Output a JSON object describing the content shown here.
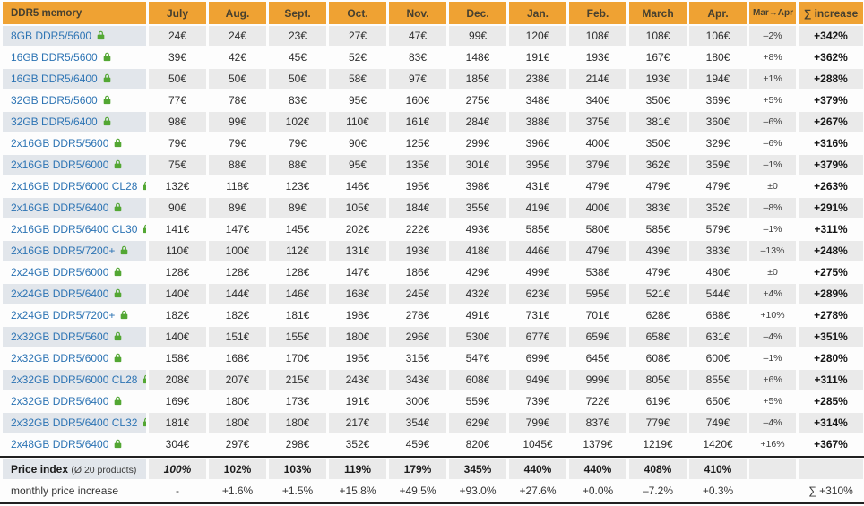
{
  "colors": {
    "header_bg": "#efa233",
    "header_text": "#47402f",
    "row_gray": "#eaeaea",
    "label_gray": "#e2e6eb",
    "link_blue": "#2d74b4",
    "lock_green": "#53a733",
    "separator_dark": "#212121"
  },
  "chart_data": {
    "type": "table",
    "title": "DDR5 memory",
    "header": {
      "label": "DDR5 memory",
      "months": [
        "July",
        "Aug.",
        "Sept.",
        "Oct.",
        "Nov.",
        "Dec.",
        "Jan.",
        "Feb.",
        "March",
        "Apr."
      ],
      "change_label": "Mar→Apr",
      "sum_label": "∑ increase"
    },
    "rows": [
      {
        "label": "8GB DDR5/5600",
        "prices": [
          "24€",
          "24€",
          "23€",
          "27€",
          "47€",
          "99€",
          "120€",
          "108€",
          "108€",
          "106€"
        ],
        "change": "–2%",
        "sum": "+342%"
      },
      {
        "label": "16GB DDR5/5600",
        "prices": [
          "39€",
          "42€",
          "45€",
          "52€",
          "83€",
          "148€",
          "191€",
          "193€",
          "167€",
          "180€"
        ],
        "change": "+8%",
        "sum": "+362%"
      },
      {
        "label": "16GB DDR5/6400",
        "prices": [
          "50€",
          "50€",
          "50€",
          "58€",
          "97€",
          "185€",
          "238€",
          "214€",
          "193€",
          "194€"
        ],
        "change": "+1%",
        "sum": "+288%"
      },
      {
        "label": "32GB DDR5/5600",
        "prices": [
          "77€",
          "78€",
          "83€",
          "95€",
          "160€",
          "275€",
          "348€",
          "340€",
          "350€",
          "369€"
        ],
        "change": "+5%",
        "sum": "+379%"
      },
      {
        "label": "32GB DDR5/6400",
        "prices": [
          "98€",
          "99€",
          "102€",
          "110€",
          "161€",
          "284€",
          "388€",
          "375€",
          "381€",
          "360€"
        ],
        "change": "–6%",
        "sum": "+267%"
      },
      {
        "label": "2x16GB DDR5/5600",
        "prices": [
          "79€",
          "79€",
          "79€",
          "90€",
          "125€",
          "299€",
          "396€",
          "400€",
          "350€",
          "329€"
        ],
        "change": "–6%",
        "sum": "+316%"
      },
      {
        "label": "2x16GB DDR5/6000",
        "prices": [
          "75€",
          "88€",
          "88€",
          "95€",
          "135€",
          "301€",
          "395€",
          "379€",
          "362€",
          "359€"
        ],
        "change": "–1%",
        "sum": "+379%"
      },
      {
        "label": "2x16GB DDR5/6000 CL28",
        "prices": [
          "132€",
          "118€",
          "123€",
          "146€",
          "195€",
          "398€",
          "431€",
          "479€",
          "479€",
          "479€"
        ],
        "change": "±0",
        "sum": "+263%"
      },
      {
        "label": "2x16GB DDR5/6400",
        "prices": [
          "90€",
          "89€",
          "89€",
          "105€",
          "184€",
          "355€",
          "419€",
          "400€",
          "383€",
          "352€"
        ],
        "change": "–8%",
        "sum": "+291%"
      },
      {
        "label": "2x16GB DDR5/6400 CL30",
        "prices": [
          "141€",
          "147€",
          "145€",
          "202€",
          "222€",
          "493€",
          "585€",
          "580€",
          "585€",
          "579€"
        ],
        "change": "–1%",
        "sum": "+311%"
      },
      {
        "label": "2x16GB DDR5/7200+",
        "prices": [
          "110€",
          "100€",
          "112€",
          "131€",
          "193€",
          "418€",
          "446€",
          "479€",
          "439€",
          "383€"
        ],
        "change": "–13%",
        "sum": "+248%"
      },
      {
        "label": "2x24GB DDR5/6000",
        "prices": [
          "128€",
          "128€",
          "128€",
          "147€",
          "186€",
          "429€",
          "499€",
          "538€",
          "479€",
          "480€"
        ],
        "change": "±0",
        "sum": "+275%"
      },
      {
        "label": "2x24GB DDR5/6400",
        "prices": [
          "140€",
          "144€",
          "146€",
          "168€",
          "245€",
          "432€",
          "623€",
          "595€",
          "521€",
          "544€"
        ],
        "change": "+4%",
        "sum": "+289%"
      },
      {
        "label": "2x24GB DDR5/7200+",
        "prices": [
          "182€",
          "182€",
          "181€",
          "198€",
          "278€",
          "491€",
          "731€",
          "701€",
          "628€",
          "688€"
        ],
        "change": "+10%",
        "sum": "+278%"
      },
      {
        "label": "2x32GB DDR5/5600",
        "prices": [
          "140€",
          "151€",
          "155€",
          "180€",
          "296€",
          "530€",
          "677€",
          "659€",
          "658€",
          "631€"
        ],
        "change": "–4%",
        "sum": "+351%"
      },
      {
        "label": "2x32GB DDR5/6000",
        "prices": [
          "158€",
          "168€",
          "170€",
          "195€",
          "315€",
          "547€",
          "699€",
          "645€",
          "608€",
          "600€"
        ],
        "change": "–1%",
        "sum": "+280%"
      },
      {
        "label": "2x32GB DDR5/6000 CL28",
        "prices": [
          "208€",
          "207€",
          "215€",
          "243€",
          "343€",
          "608€",
          "949€",
          "999€",
          "805€",
          "855€"
        ],
        "change": "+6%",
        "sum": "+311%"
      },
      {
        "label": "2x32GB DDR5/6400",
        "prices": [
          "169€",
          "180€",
          "173€",
          "191€",
          "300€",
          "559€",
          "739€",
          "722€",
          "619€",
          "650€"
        ],
        "change": "+5%",
        "sum": "+285%"
      },
      {
        "label": "2x32GB DDR5/6400 CL32",
        "prices": [
          "181€",
          "180€",
          "180€",
          "217€",
          "354€",
          "629€",
          "799€",
          "837€",
          "779€",
          "749€"
        ],
        "change": "–4%",
        "sum": "+314%"
      },
      {
        "label": "2x48GB DDR5/6400",
        "prices": [
          "304€",
          "297€",
          "298€",
          "352€",
          "459€",
          "820€",
          "1045€",
          "1379€",
          "1219€",
          "1420€"
        ],
        "change": "+16%",
        "sum": "+367%"
      }
    ],
    "price_index_row": {
      "label": "Price index",
      "label_note": "(Ø 20 products)",
      "values": [
        "100%",
        "102%",
        "103%",
        "119%",
        "179%",
        "345%",
        "440%",
        "440%",
        "408%",
        "410%"
      ]
    },
    "monthly_row": {
      "label": "monthly price increase",
      "values": [
        "-",
        "+1.6%",
        "+1.5%",
        "+15.8%",
        "+49.5%",
        "+93.0%",
        "+27.6%",
        "+0.0%",
        "–7.2%",
        "+0.3%"
      ],
      "sum": "∑ +310%"
    }
  }
}
